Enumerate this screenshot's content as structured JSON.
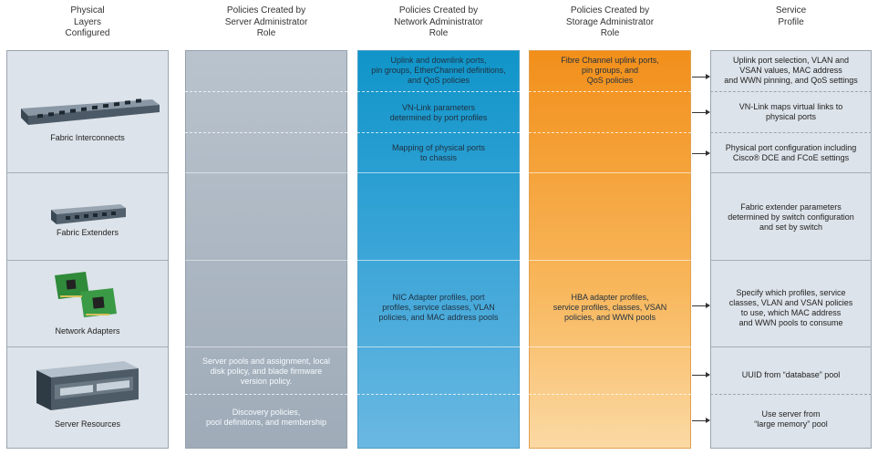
{
  "headers": {
    "physical": "Physical\nLayers\nConfigured",
    "server": "Policies Created by\nServer Administrator\nRole",
    "network": "Policies Created by\nNetwork Administrator\nRole",
    "storage": "Policies Created by\nStorage Administrator\nRole",
    "profile": "Service\nProfile"
  },
  "physical_layers": [
    {
      "label": "Fabric Interconnects",
      "icon": "fabric-interconnect-icon"
    },
    {
      "label": "Fabric Extenders",
      "icon": "fabric-extender-icon"
    },
    {
      "label": "Network Adapters",
      "icon": "network-adapter-icon"
    },
    {
      "label": "Server Resources",
      "icon": "server-icon"
    }
  ],
  "server_policies": {
    "pools": "Server pools and assignment, local\ndisk policy, and blade firmware\nversion policy.",
    "discovery": "Discovery policies,\npool definitions, and membership"
  },
  "network_policies": {
    "uplink": "Uplink and downlink ports,\npin groups, EtherChannel definitions,\nand QoS policies",
    "vnlink": "VN-Link parameters\ndetermined by port profiles",
    "mapping": "Mapping of physical ports\nto chassis",
    "nic": "NIC Adapter profiles, port\nprofiles, service classes, VLAN\npolicies, and MAC address pools"
  },
  "storage_policies": {
    "fc": "Fibre Channel uplink ports,\npin groups, and\nQoS policies",
    "hba": "HBA adapter profiles,\nservice profiles, classes, VSAN\npolicies, and WWN pools"
  },
  "service_profile": {
    "uplink": "Uplink port selection, VLAN and\nVSAN values, MAC address\nand WWN pinning, and QoS settings",
    "vnlink": "VN-Link maps virtual links to\nphysical ports",
    "physport": "Physical port configuration including\nCisco® DCE and FCoE settings",
    "fex": "Fabric extender parameters\ndetermined by switch configuration\nand set by switch",
    "specify": "Specify which profiles, service\nclasses, VLAN and VSAN policies\nto use, which MAC address\nand WWN pools to consume",
    "uuid": "UUID from “database” pool",
    "server": "Use server from\n“large memory” pool"
  },
  "colors": {
    "network": "#1a9ad0",
    "storage": "#f5a234",
    "server": "#aab5c1",
    "panel": "#dde3ea"
  }
}
